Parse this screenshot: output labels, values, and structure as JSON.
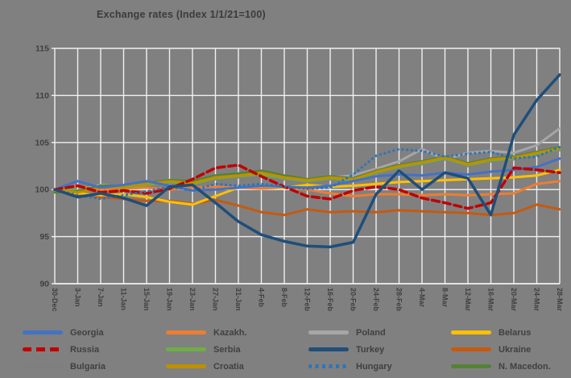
{
  "title": "Exchange rates (Index 1/1/21=100)",
  "colors": {
    "background": "#808080",
    "gridline": "#F1F1F1",
    "axis_text": "#404040",
    "title_text": "#3b3b3b"
  },
  "chart_data": {
    "type": "line",
    "title": "Exchange rates (Index 1/1/21=100)",
    "xlabel": "",
    "ylabel": "",
    "ylim": [
      90,
      115
    ],
    "y_ticks": [
      90,
      95,
      100,
      105,
      110,
      115
    ],
    "grid": true,
    "legend_position": "bottom",
    "categories": [
      "30-Dec",
      "3-Jan",
      "7-Jan",
      "11-Jan",
      "15-Jan",
      "19-Jan",
      "23-Jan",
      "27-Jan",
      "31-Jan",
      "4-Feb",
      "8-Feb",
      "12-Feb",
      "16-Feb",
      "20-Feb",
      "24-Feb",
      "28-Feb",
      "4-Mar",
      "8-Mar",
      "12-Mar",
      "16-Mar",
      "20-Mar",
      "24-Mar",
      "28-Mar"
    ],
    "series": [
      {
        "name": "Poland",
        "color": "#A6A6A6",
        "style": "solid",
        "width": 3,
        "values": [
          100,
          99.9,
          100.5,
          100.3,
          100.7,
          101.0,
          100.8,
          101.4,
          101.6,
          101.9,
          101.4,
          101.1,
          101.3,
          101.5,
          102.2,
          103.0,
          104.3,
          103.2,
          103.9,
          104.1,
          103.9,
          104.7,
          106.5
        ]
      },
      {
        "name": "Bulgaria",
        "color": "#7F7F7F",
        "style": "solid",
        "width": 3,
        "values": [
          100,
          99.8,
          100.3,
          100.1,
          100.4,
          100.7,
          100.5,
          101.1,
          101.3,
          101.5,
          101.1,
          100.8,
          101.1,
          100.9,
          101.7,
          102.3,
          102.7,
          103.2,
          102.5,
          103.0,
          103.2,
          103.7,
          104.2
        ]
      },
      {
        "name": "Kazakh.",
        "color": "#ED7D31",
        "style": "solid",
        "width": 3,
        "values": [
          100,
          100.4,
          99.9,
          100.1,
          100.2,
          100.0,
          100.2,
          100.3,
          100.2,
          100.1,
          100.2,
          100.0,
          99.6,
          99.3,
          99.5,
          99.5,
          99.4,
          99.5,
          99.4,
          99.5,
          99.6,
          100.6,
          100.9
        ]
      },
      {
        "name": "Ukraine",
        "color": "#C55A11",
        "style": "solid",
        "width": 3,
        "values": [
          100,
          99.5,
          99.2,
          99.0,
          98.8,
          98.8,
          98.5,
          98.9,
          98.3,
          97.6,
          97.3,
          97.9,
          97.6,
          97.7,
          97.6,
          97.8,
          97.7,
          97.6,
          97.5,
          97.3,
          97.5,
          98.4,
          97.9
        ]
      },
      {
        "name": "Belarus",
        "color": "#FFC000",
        "style": "solid",
        "width": 3,
        "values": [
          99.8,
          99.6,
          99.4,
          99.5,
          99.2,
          98.7,
          98.4,
          99.3,
          100.2,
          100.4,
          100.2,
          100.5,
          100.3,
          100.4,
          100.6,
          100.8,
          100.9,
          101.0,
          101.1,
          101.2,
          101.3,
          101.5,
          102.1
        ]
      },
      {
        "name": "Serbia",
        "color": "#70AD47",
        "style": "solid",
        "width": 3,
        "values": [
          100,
          99.9,
          100.3,
          100.2,
          100.5,
          100.8,
          100.6,
          101.2,
          101.4,
          101.6,
          101.2,
          100.9,
          101.2,
          101.0,
          101.8,
          102.4,
          102.8,
          103.3,
          102.6,
          103.1,
          103.3,
          103.8,
          104.3
        ]
      },
      {
        "name": "N. Macedon.",
        "color": "#548235",
        "style": "solid",
        "width": 3,
        "values": [
          99.7,
          99.8,
          100.4,
          100.4,
          100.7,
          101.0,
          100.9,
          101.5,
          101.7,
          102.0,
          101.5,
          101.1,
          101.4,
          101.2,
          102.0,
          102.6,
          103.0,
          103.5,
          102.8,
          103.3,
          103.5,
          104.0,
          104.5
        ]
      },
      {
        "name": "Croatia",
        "color": "#BF8F00",
        "style": "solid",
        "width": 3,
        "values": [
          99.9,
          99.7,
          100.2,
          100.3,
          100.6,
          100.9,
          100.7,
          101.3,
          101.5,
          101.8,
          101.3,
          101.0,
          101.3,
          101.1,
          101.9,
          102.5,
          102.9,
          103.4,
          102.7,
          103.2,
          103.4,
          103.9,
          104.4
        ]
      },
      {
        "name": "Georgia",
        "color": "#4472C4",
        "style": "solid",
        "width": 3,
        "values": [
          100,
          100.9,
          100.2,
          100.5,
          100.9,
          100.4,
          99.9,
          100.0,
          100.2,
          100.4,
          100.3,
          100.2,
          100.4,
          100.9,
          101.4,
          101.6,
          101.5,
          101.8,
          101.6,
          101.9,
          102.1,
          102.4,
          103.3
        ]
      },
      {
        "name": "Russia",
        "color": "#C00000",
        "style": "dashed",
        "width": 3.5,
        "values": [
          100,
          100.4,
          99.7,
          99.9,
          99.6,
          100.1,
          101.1,
          102.3,
          102.6,
          101.4,
          100.3,
          99.3,
          99.0,
          99.9,
          100.3,
          100.0,
          99.1,
          98.6,
          98.0,
          98.6,
          102.3,
          102.1,
          101.8
        ]
      },
      {
        "name": "Hungary",
        "color": "#2E75B6",
        "style": "dotted",
        "width": 3.2,
        "values": [
          100,
          99.4,
          99.0,
          99.4,
          99.8,
          100.3,
          99.9,
          100.6,
          100.4,
          100.6,
          100.3,
          100.1,
          100.2,
          101.6,
          103.6,
          104.3,
          104.1,
          103.5,
          103.8,
          104.0,
          103.3,
          103.5,
          104.5
        ]
      },
      {
        "name": "Turkey",
        "color": "#1F4E79",
        "style": "solid",
        "width": 3.5,
        "values": [
          100,
          99.2,
          99.6,
          99.1,
          98.3,
          100.3,
          100.5,
          98.6,
          96.6,
          95.2,
          94.5,
          94.0,
          93.9,
          94.4,
          99.5,
          102.0,
          100.0,
          101.8,
          101.2,
          97.3,
          105.8,
          109.5,
          112.2
        ]
      }
    ],
    "legend_order": [
      "Georgia",
      "Kazakh.",
      "Poland",
      "Belarus",
      "Russia",
      "Serbia",
      "Turkey",
      "Ukraine",
      "Bulgaria",
      "Croatia",
      "Hungary",
      "N. Macedon."
    ]
  }
}
